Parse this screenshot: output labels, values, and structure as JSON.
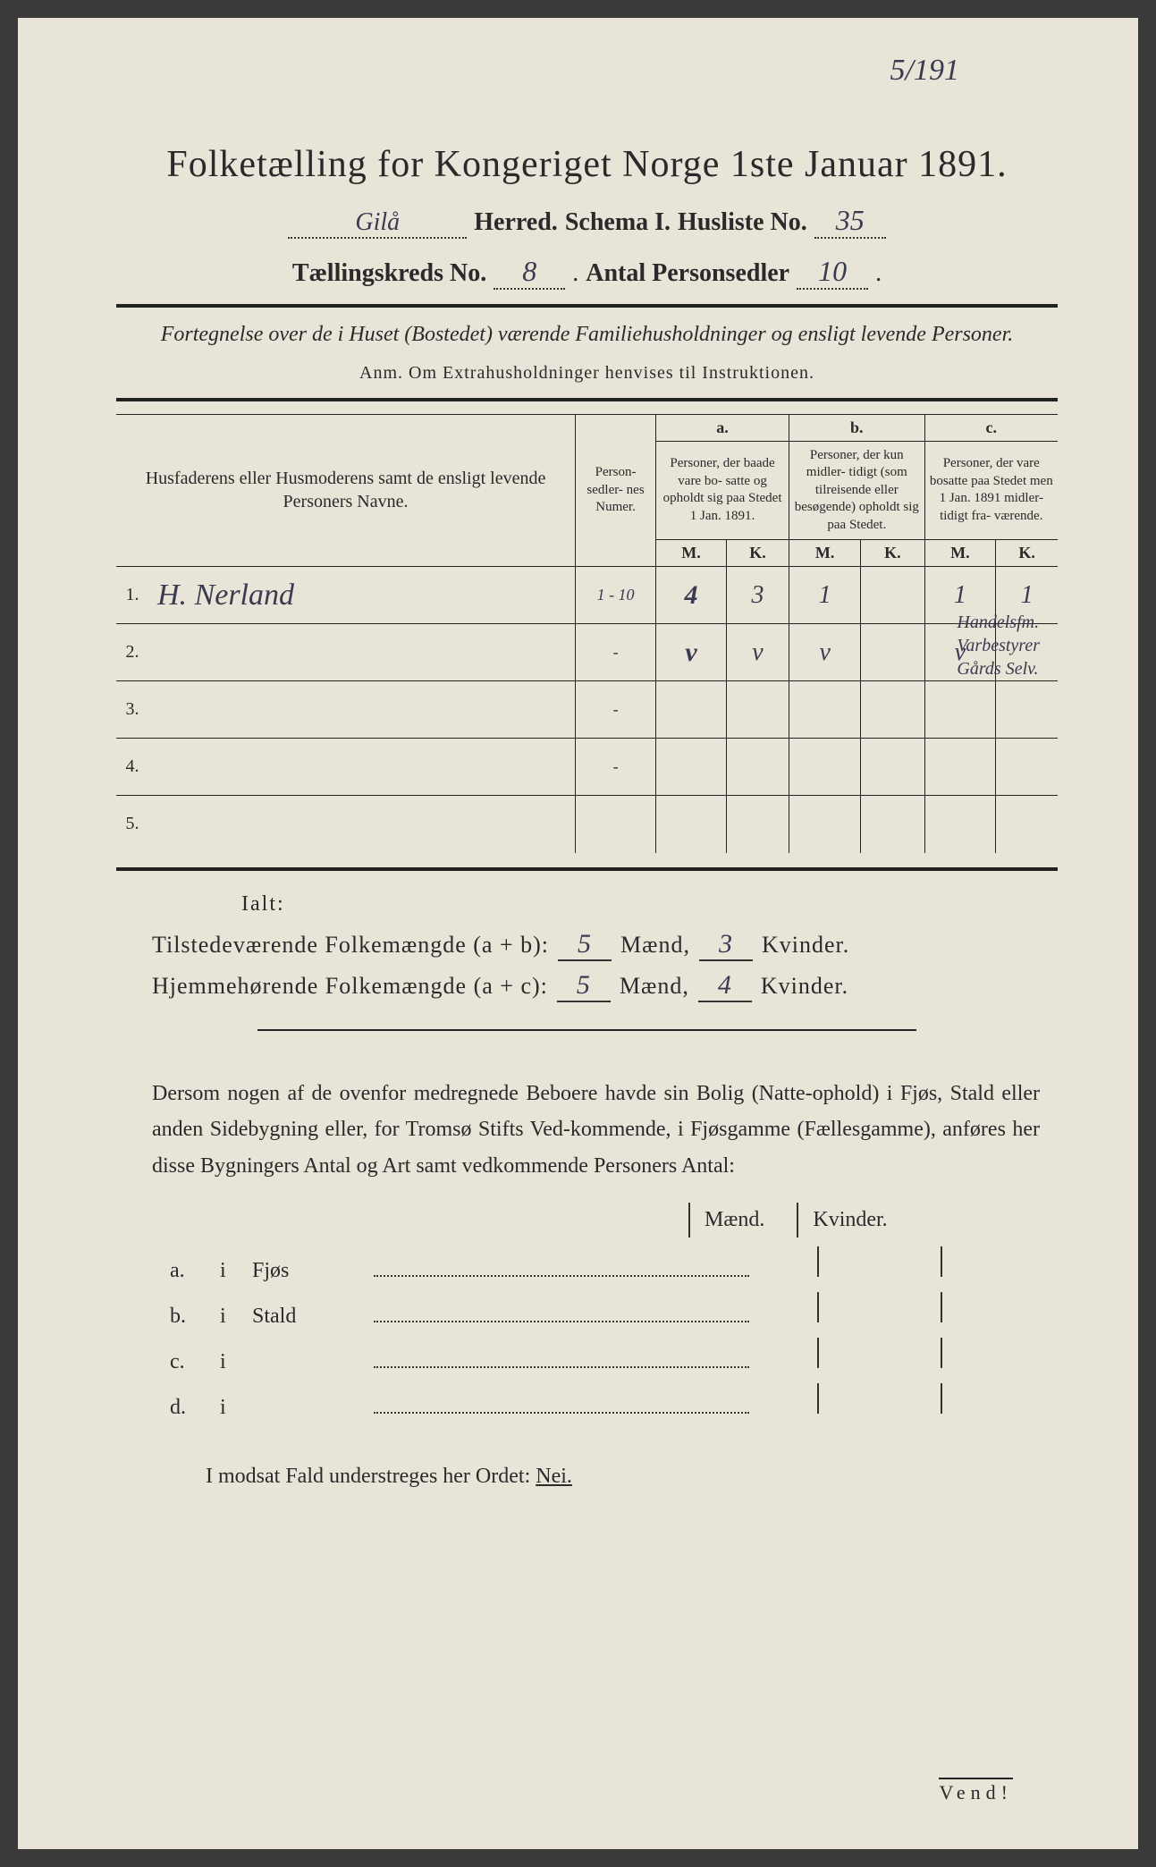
{
  "meta": {
    "corner_ref": "5/191",
    "title": "Folketælling for Kongeriget Norge 1ste Januar 1891.",
    "herred_value": "Gilå",
    "herred_label": "Herred.",
    "schema_label": "Schema I.",
    "husliste_label": "Husliste No.",
    "husliste_value": "35",
    "kreds_label": "Tællingskreds No.",
    "kreds_value": "8",
    "antal_label": "Antal Personsedler",
    "antal_value": "10",
    "subtitle": "Fortegnelse over de i Huset (Bostedet) værende Familiehusholdninger og ensligt levende Personer.",
    "anm": "Anm.  Om Extrahusholdninger henvises til Instruktionen."
  },
  "table": {
    "col_names": "Husfaderens eller Husmoderens samt de ensligt levende Personers Navne.",
    "col_numer": "Person-\nsedler-\nnes\nNumer.",
    "a_label": "a.",
    "a_desc": "Personer, der baade vare bo-\nsatte og opholdt sig paa Stedet 1 Jan. 1891.",
    "b_label": "b.",
    "b_desc": "Personer, der kun midler-\ntidigt (som tilreisende eller besøgende) opholdt sig paa Stedet.",
    "c_label": "c.",
    "c_desc": "Personer, der vare bosatte paa Stedet men 1 Jan. 1891 midler-\ntidigt fra-\nværende.",
    "m": "M.",
    "k": "K.",
    "rows": [
      {
        "n": "1.",
        "name": "H. Nerland",
        "numer": "1 - 10",
        "a_m": "4",
        "a_k": "3",
        "b_m": "1",
        "b_k": "",
        "c_m": "1",
        "c_k": "1"
      },
      {
        "n": "2.",
        "name": "",
        "numer": "-",
        "a_m": "v",
        "a_k": "v",
        "b_m": "v",
        "b_k": "",
        "c_m": "v",
        "c_k": ""
      },
      {
        "n": "3.",
        "name": "",
        "numer": "-",
        "a_m": "",
        "a_k": "",
        "b_m": "",
        "b_k": "",
        "c_m": "",
        "c_k": ""
      },
      {
        "n": "4.",
        "name": "",
        "numer": "-",
        "a_m": "",
        "a_k": "",
        "b_m": "",
        "b_k": "",
        "c_m": "",
        "c_k": ""
      },
      {
        "n": "5.",
        "name": "",
        "numer": "",
        "a_m": "",
        "a_k": "",
        "b_m": "",
        "b_k": "",
        "c_m": "",
        "c_k": ""
      }
    ],
    "margin_notes": [
      "Handelsfm.",
      "Varbestyrer",
      "Gårds Selv."
    ]
  },
  "totals": {
    "ialt": "Ialt:",
    "present_label": "Tilstedeværende Folkemængde (a + b):",
    "present_m": "5",
    "present_k": "3",
    "home_label": "Hjemmehørende Folkemængde (a + c):",
    "home_m": "5",
    "home_k": "4",
    "maend": "Mænd,",
    "kvinder": "Kvinder."
  },
  "paragraph": "Dersom nogen af de ovenfor medregnede Beboere havde sin Bolig (Natte-ophold) i Fjøs, Stald eller anden Sidebygning eller, for Tromsø Stifts Ved-kommende, i Fjøsgamme (Fællesgamme), anføres her disse Bygningers Antal og Art samt vedkommende Personers Antal:",
  "buildings": {
    "mk_m": "Mænd.",
    "mk_k": "Kvinder.",
    "rows": [
      {
        "label": "a.",
        "i": "i",
        "type": "Fjøs"
      },
      {
        "label": "b.",
        "i": "i",
        "type": "Stald"
      },
      {
        "label": "c.",
        "i": "i",
        "type": ""
      },
      {
        "label": "d.",
        "i": "i",
        "type": ""
      }
    ]
  },
  "footer": {
    "text_pre": "I modsat Fald understreges her Ordet: ",
    "nei": "Nei.",
    "vend": "Vend!"
  },
  "colors": {
    "paper": "#e8e4d8",
    "ink": "#2a2a2a",
    "handwriting": "#3a3a50"
  }
}
